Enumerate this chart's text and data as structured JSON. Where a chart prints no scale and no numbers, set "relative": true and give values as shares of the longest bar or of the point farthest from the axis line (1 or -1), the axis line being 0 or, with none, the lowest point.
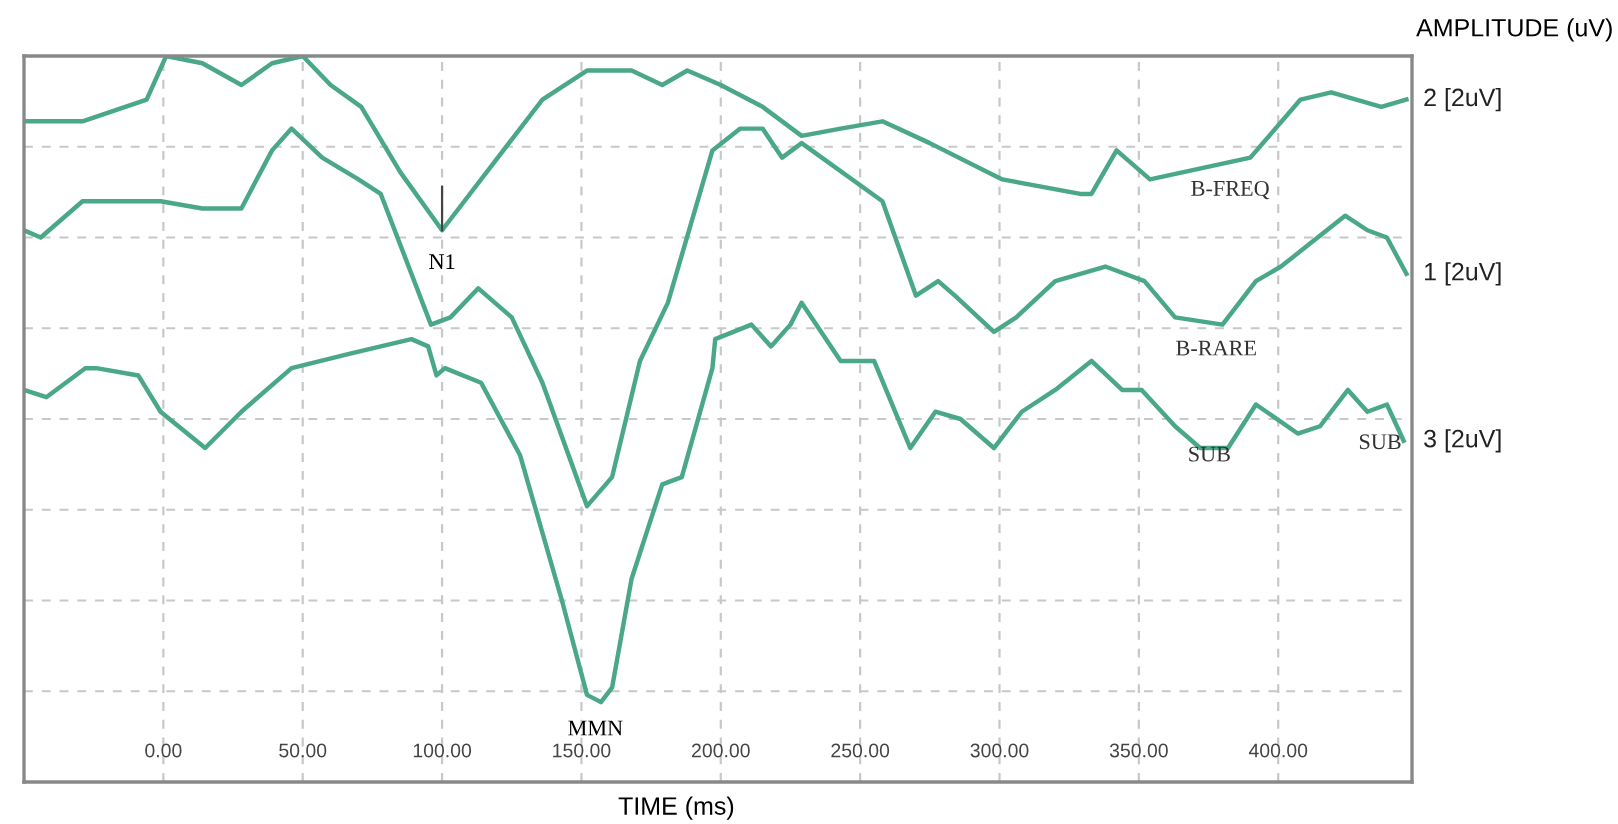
{
  "chart_data": {
    "type": "line",
    "relative": true,
    "xlabel": "TIME (ms)",
    "ylabel": "AMPLITUDE (uV)",
    "xlim": [
      -50,
      448
    ],
    "xticks": [
      {
        "value": 0,
        "label": "0.00"
      },
      {
        "value": 50,
        "label": "50.00"
      },
      {
        "value": 100,
        "label": "100.00"
      },
      {
        "value": 150,
        "label": "150.00"
      },
      {
        "value": 200,
        "label": "200.00"
      },
      {
        "value": 250,
        "label": "250.00"
      },
      {
        "value": 300,
        "label": "300.00"
      },
      {
        "value": 350,
        "label": "350.00"
      },
      {
        "value": 400,
        "label": "400.00"
      }
    ],
    "grid": true,
    "line_style": "solid",
    "marker": "none",
    "tick_labels": "x",
    "series": [
      {
        "name": "2 [2uV]",
        "color": "#4aa886",
        "x": [
          -50,
          -29,
          -6,
          1,
          14,
          28,
          39,
          50,
          60,
          71,
          85,
          100,
          118,
          136,
          152,
          168,
          179,
          188,
          200,
          215,
          229,
          243,
          258,
          275,
          301,
          329,
          333,
          342,
          354,
          390,
          408,
          419,
          437,
          446
        ],
        "values": [
          0.91,
          0.91,
          0.94,
          1.0,
          0.99,
          0.96,
          0.99,
          1.0,
          0.96,
          0.93,
          0.84,
          0.76,
          0.85,
          0.94,
          0.98,
          0.98,
          0.96,
          0.98,
          0.96,
          0.93,
          0.89,
          0.9,
          0.91,
          0.88,
          0.83,
          0.81,
          0.81,
          0.87,
          0.83,
          0.86,
          0.94,
          0.95,
          0.93,
          0.94
        ]
      },
      {
        "name": "1 [2uV]",
        "color": "#4aa886",
        "x": [
          -50,
          -44,
          -29,
          -1,
          14,
          28,
          39,
          46,
          57,
          70,
          78,
          96,
          103,
          113,
          125,
          136,
          152,
          161,
          171,
          181,
          197,
          207,
          215,
          222,
          229,
          258,
          270,
          278,
          284,
          298,
          306,
          320,
          338,
          352,
          363,
          380,
          392,
          401,
          424,
          432,
          439,
          446
        ],
        "values": [
          0.76,
          0.75,
          0.8,
          0.8,
          0.79,
          0.79,
          0.87,
          0.9,
          0.86,
          0.83,
          0.81,
          0.63,
          0.64,
          0.68,
          0.64,
          0.55,
          0.38,
          0.42,
          0.58,
          0.66,
          0.87,
          0.9,
          0.9,
          0.86,
          0.88,
          0.8,
          0.67,
          0.69,
          0.67,
          0.62,
          0.64,
          0.69,
          0.71,
          0.69,
          0.64,
          0.63,
          0.69,
          0.71,
          0.78,
          0.76,
          0.75,
          0.7
        ]
      },
      {
        "name": "3 [2uV]",
        "color": "#4aa886",
        "x": [
          -50,
          -42,
          -28,
          -24,
          -9,
          -1,
          15,
          28,
          46,
          67,
          89,
          95,
          98,
          101,
          114,
          128,
          143,
          152,
          157,
          161,
          168,
          179,
          186,
          197,
          198,
          211,
          218,
          225,
          229,
          243,
          255,
          268,
          277,
          286,
          298,
          308,
          320,
          333,
          344,
          351,
          363,
          372,
          382,
          392,
          407,
          415,
          425,
          432,
          439,
          445
        ],
        "values": [
          0.54,
          0.53,
          0.57,
          0.57,
          0.56,
          0.51,
          0.46,
          0.51,
          0.57,
          0.59,
          0.61,
          0.6,
          0.56,
          0.57,
          0.55,
          0.45,
          0.25,
          0.12,
          0.11,
          0.13,
          0.28,
          0.41,
          0.42,
          0.57,
          0.61,
          0.63,
          0.6,
          0.63,
          0.66,
          0.58,
          0.58,
          0.46,
          0.51,
          0.5,
          0.46,
          0.51,
          0.54,
          0.58,
          0.54,
          0.54,
          0.49,
          0.46,
          0.46,
          0.52,
          0.48,
          0.49,
          0.54,
          0.51,
          0.52,
          0.47
        ]
      }
    ],
    "annotations": [
      {
        "text": "N1",
        "x": 100,
        "y": 0.76
      },
      {
        "text": "MMN",
        "x": 155,
        "y": 0.11
      },
      "B-FREQ",
      "B-RARE",
      "SUB",
      "SUB"
    ]
  }
}
